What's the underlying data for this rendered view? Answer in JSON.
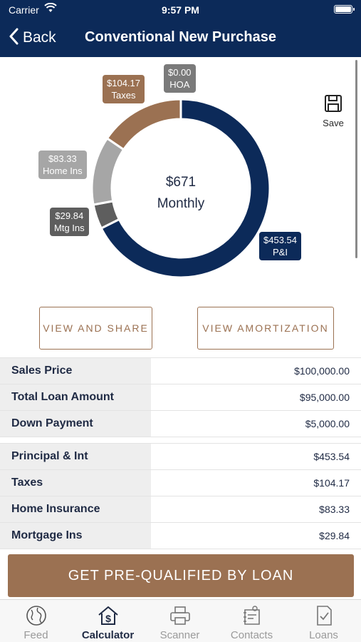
{
  "status_bar": {
    "carrier": "Carrier",
    "time": "9:57 PM"
  },
  "nav": {
    "back_label": "Back",
    "title": "Conventional New Purchase"
  },
  "chart_data": {
    "type": "pie",
    "center_value": "$671",
    "center_label": "Monthly",
    "slices": [
      {
        "name": "P&I",
        "value": 453.54,
        "label": "$453.54",
        "color": "#0c2a59"
      },
      {
        "name": "Mtg Ins",
        "value": 29.84,
        "label": "$29.84",
        "color": "#5e5e5e"
      },
      {
        "name": "Home Ins",
        "value": 83.33,
        "label": "$83.33",
        "color": "#a6a6a6"
      },
      {
        "name": "Taxes",
        "value": 104.17,
        "label": "$104.17",
        "color": "#9b7152"
      },
      {
        "name": "HOA",
        "value": 0.0,
        "label": "$0.00",
        "color": "#7a7a7a"
      }
    ]
  },
  "save": {
    "label": "Save"
  },
  "buttons": {
    "view_share": "VIEW AND SHARE",
    "view_amortization": "VIEW AMORTIZATION"
  },
  "loan_table": [
    {
      "label": "Sales Price",
      "value": "$100,000.00"
    },
    {
      "label": "Total Loan Amount",
      "value": "$95,000.00"
    },
    {
      "label": "Down Payment",
      "value": "$5,000.00"
    }
  ],
  "payment_table": [
    {
      "label": "Principal & Int",
      "value": "$453.54"
    },
    {
      "label": "Taxes",
      "value": "$104.17"
    },
    {
      "label": "Home Insurance",
      "value": "$83.33"
    },
    {
      "label": "Mortgage Ins",
      "value": "$29.84"
    }
  ],
  "cta": {
    "label": "GET PRE-QUALIFIED BY LOAN"
  },
  "tabs": [
    {
      "label": "Feed",
      "icon": "globe-icon"
    },
    {
      "label": "Calculator",
      "icon": "house-dollar-icon",
      "active": true
    },
    {
      "label": "Scanner",
      "icon": "printer-icon"
    },
    {
      "label": "Contacts",
      "icon": "contact-card-icon"
    },
    {
      "label": "Loans",
      "icon": "checked-document-icon"
    }
  ]
}
